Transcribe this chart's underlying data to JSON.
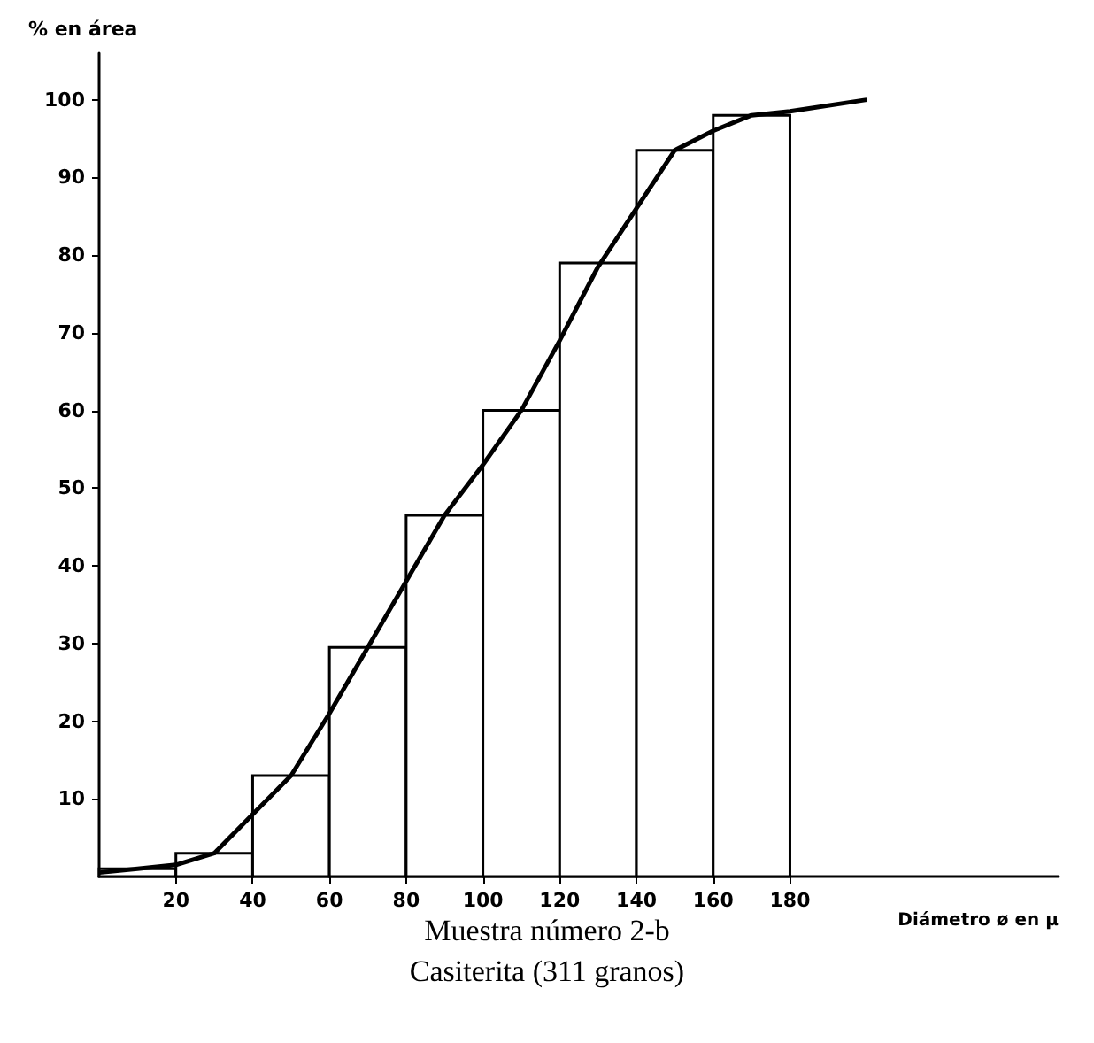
{
  "chart_data": {
    "type": "histogram",
    "title": "Muestra número 2-b",
    "subtitle": "Casiterita (311 granos)",
    "xlabel": "Diámetro ø en μ",
    "ylabel": "% en área",
    "xlim": [
      0,
      250
    ],
    "xticks": [
      20,
      40,
      60,
      80,
      100,
      120,
      140,
      160,
      180
    ],
    "ylim": [
      0,
      106
    ],
    "yticks": [
      10,
      20,
      30,
      40,
      50,
      60,
      70,
      80,
      90,
      100
    ],
    "grid": false,
    "series": [
      {
        "color": "#000000",
        "bins": [
          0,
          20,
          40,
          60,
          80,
          100,
          120,
          140,
          160,
          180
        ],
        "values": [
          1,
          3,
          13,
          29.5,
          46.5,
          60,
          79,
          93.5,
          98
        ]
      },
      {
        "type": "line",
        "color": "#000000",
        "x": [
          0,
          10,
          20,
          30,
          40,
          50,
          60,
          70,
          80,
          90,
          100,
          110,
          120,
          130,
          140,
          150,
          160,
          170,
          180,
          200
        ],
        "values": [
          0.5,
          1,
          1.5,
          3,
          8,
          13,
          21,
          29.5,
          38,
          46.5,
          53,
          60,
          69,
          78.5,
          86,
          93.5,
          96,
          98,
          98.5,
          100
        ]
      }
    ]
  }
}
